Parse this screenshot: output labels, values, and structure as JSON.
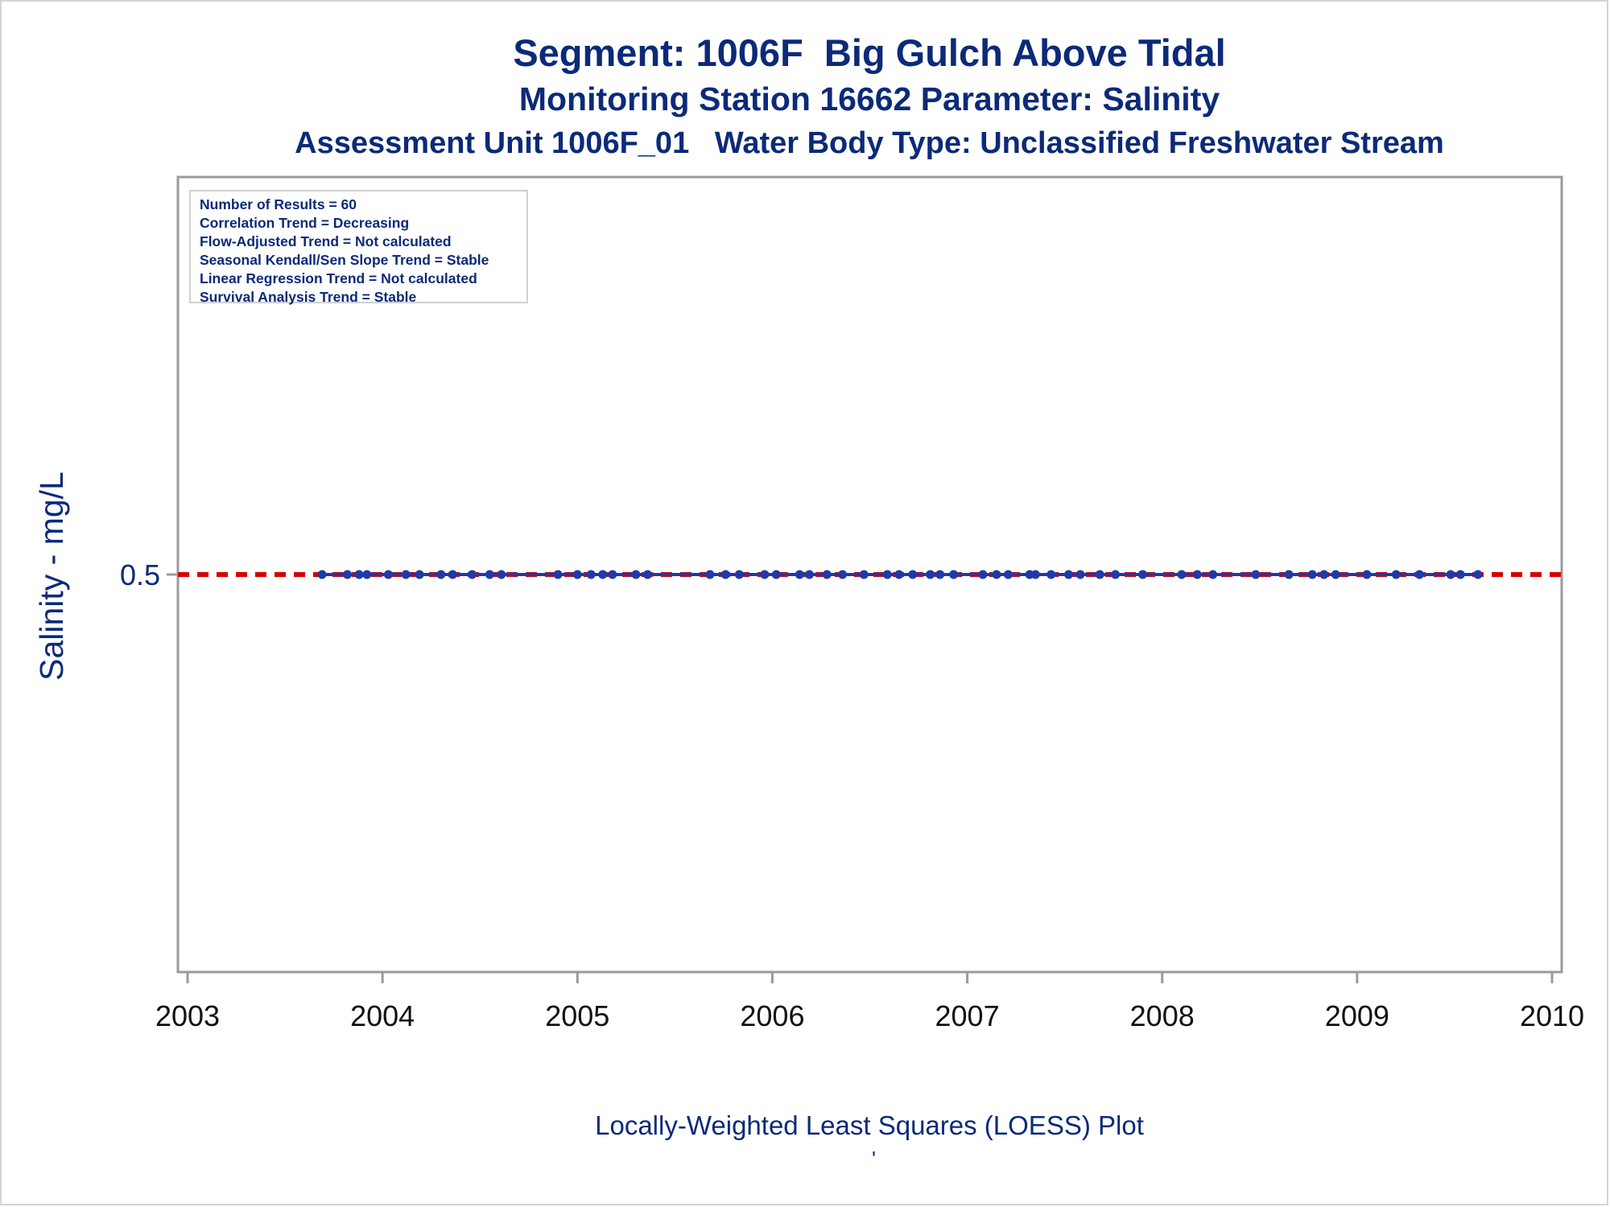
{
  "titles": {
    "line1": "Segment: 1006F  Big Gulch Above Tidal",
    "line2": "Monitoring Station 16662 Parameter: Salinity",
    "line3": "Assessment Unit 1006F_01   Water Body Type: Unclassified Freshwater Stream"
  },
  "stats": [
    "Number of Results = 60",
    "Correlation Trend = Decreasing",
    "Flow-Adjusted Trend = Not calculated",
    "Seasonal Kendall/Sen Slope Trend = Stable",
    "Linear Regression Trend = Not calculated",
    "Survival Analysis Trend = Stable"
  ],
  "footer": {
    "note": "Locally-Weighted Least Squares (LOESS) Plot",
    "mark": "'"
  },
  "colors": {
    "text": "#0b2a78",
    "points": "#1f3aa8",
    "reference_line": "#d40000",
    "loess_line": "#1f3aa8",
    "axis": "#9a9a9a"
  },
  "chart_data": {
    "type": "scatter",
    "title": "Segment: 1006F  Big Gulch Above Tidal",
    "xlabel": "",
    "ylabel": "Salinity - mg/L",
    "xlim": [
      2003,
      2010
    ],
    "ylim": [
      0.3,
      0.7
    ],
    "x_ticks": [
      "2003",
      "2004",
      "2005",
      "2006",
      "2007",
      "2008",
      "2009",
      "2010"
    ],
    "y_ticks": [
      "0.5"
    ],
    "reference_line": {
      "y": 0.5,
      "style": "dashed",
      "color": "#d40000"
    },
    "series": [
      {
        "type": "scatter+loess",
        "x": [
          2003.69,
          2003.82,
          2003.88,
          2003.92,
          2004.03,
          2004.12,
          2004.19,
          2004.3,
          2004.36,
          2004.46,
          2004.55,
          2004.61,
          2004.9,
          2005.0,
          2005.07,
          2005.13,
          2005.18,
          2005.3,
          2005.36,
          2005.68,
          2005.76,
          2005.83,
          2005.96,
          2006.02,
          2006.14,
          2006.19,
          2006.28,
          2006.36,
          2006.47,
          2006.59,
          2006.65,
          2006.72,
          2006.81,
          2006.86,
          2006.93,
          2007.08,
          2007.15,
          2007.21,
          2007.32,
          2007.35,
          2007.43,
          2007.52,
          2007.58,
          2007.68,
          2007.76,
          2007.9,
          2008.1,
          2008.18,
          2008.26,
          2008.48,
          2008.65,
          2008.77,
          2008.83,
          2008.89,
          2009.05,
          2009.2,
          2009.32,
          2009.48,
          2009.53,
          2009.62
        ],
        "y": [
          0.5,
          0.5,
          0.5,
          0.5,
          0.5,
          0.5,
          0.5,
          0.5,
          0.5,
          0.5,
          0.5,
          0.5,
          0.5,
          0.5,
          0.5,
          0.5,
          0.5,
          0.5,
          0.5,
          0.5,
          0.5,
          0.5,
          0.5,
          0.5,
          0.5,
          0.5,
          0.5,
          0.5,
          0.5,
          0.5,
          0.5,
          0.5,
          0.5,
          0.5,
          0.5,
          0.5,
          0.5,
          0.5,
          0.5,
          0.5,
          0.5,
          0.5,
          0.5,
          0.5,
          0.5,
          0.5,
          0.5,
          0.5,
          0.5,
          0.5,
          0.5,
          0.5,
          0.5,
          0.5,
          0.5,
          0.5,
          0.5,
          0.5,
          0.5,
          0.5
        ]
      }
    ],
    "legend": "none",
    "grid": false
  }
}
